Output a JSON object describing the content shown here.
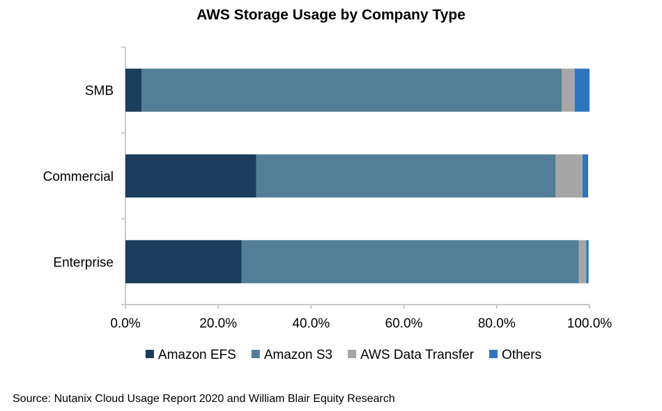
{
  "chart_data": {
    "type": "bar",
    "orientation": "horizontal",
    "stacked": true,
    "title": "AWS Storage Usage by Company Type",
    "categories": [
      "SMB",
      "Commercial",
      "Enterprise"
    ],
    "series": [
      {
        "name": "Amazon EFS",
        "color": "#1b3d5e",
        "values": [
          3.5,
          28.2,
          25.0
        ]
      },
      {
        "name": "Amazon S3",
        "color": "#527f97",
        "values": [
          90.5,
          64.5,
          72.7
        ]
      },
      {
        "name": "AWS Data Transfer",
        "color": "#a6a6a6",
        "values": [
          2.8,
          5.8,
          1.6
        ]
      },
      {
        "name": "Others",
        "color": "#2f74bf",
        "values": [
          3.2,
          1.2,
          0.5
        ]
      }
    ],
    "xlim": [
      0,
      100
    ],
    "xticks": [
      "0.0%",
      "20.0%",
      "40.0%",
      "60.0%",
      "80.0%",
      "100.0%"
    ],
    "grid": false,
    "legend_position": "bottom"
  },
  "source": "Source: Nutanix Cloud Usage Report 2020 and William Blair Equity Research"
}
